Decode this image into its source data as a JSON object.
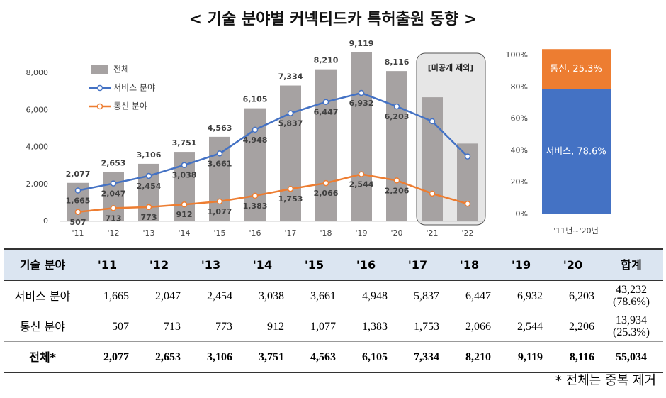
{
  "title": "< 기술 분야별 커넥티드카 특허출원 동향 >",
  "chart_data": [
    {
      "type": "bar-line",
      "categories": [
        "'11",
        "'12",
        "'13",
        "'14",
        "'15",
        "'16",
        "'17",
        "'18",
        "'19",
        "'20",
        "'21",
        "'22"
      ],
      "series": [
        {
          "name": "전체",
          "type": "bar",
          "color": "#a6a2a2",
          "values": [
            2077,
            2653,
            3106,
            3751,
            4563,
            6105,
            7334,
            8210,
            9119,
            8116,
            6700,
            4200
          ],
          "value_labels": [
            "2,077",
            "2,653",
            "3,106",
            "3,751",
            "4,563",
            "6,105",
            "7,334",
            "8,210",
            "9,119",
            "8,116",
            null,
            null
          ]
        },
        {
          "name": "서비스 분야",
          "type": "line",
          "color": "#4472c4",
          "values": [
            1665,
            2047,
            2454,
            3038,
            3661,
            4948,
            5837,
            6447,
            6932,
            6203,
            5400,
            3500
          ],
          "value_labels": [
            "1,665",
            "2,047",
            "2,454",
            "3,038",
            "3,661",
            "4,948",
            "5,837",
            "6,447",
            "6,932",
            "6,203",
            null,
            null
          ]
        },
        {
          "name": "통신 분야",
          "type": "line",
          "color": "#ed7d31",
          "values": [
            507,
            713,
            773,
            912,
            1077,
            1383,
            1753,
            2066,
            2544,
            2206,
            1500,
            950
          ],
          "value_labels": [
            "507",
            "713",
            "773",
            "912",
            "1,077",
            "1,383",
            "1,753",
            "2,066",
            "2,544",
            "2,206",
            null,
            null
          ]
        }
      ],
      "ylim": [
        0,
        9500
      ],
      "yticks": [
        0,
        {
          "value": 2000,
          "label": "2,000"
        },
        {
          "value": 4000,
          "label": "4,000"
        },
        {
          "value": 6000,
          "label": "6,000"
        },
        {
          "value": 8000,
          "label": "8,000"
        }
      ],
      "annotation": "[미공개 제외]",
      "legend": "upper-left"
    },
    {
      "type": "stacked-bar",
      "categories": [
        "'11년~'20년"
      ],
      "series": [
        {
          "name": "서비스",
          "color": "#4472c4",
          "values": [
            78.6
          ],
          "value_labels": [
            "서비스, 78.6%"
          ]
        },
        {
          "name": "통신",
          "color": "#ed7d31",
          "values": [
            25.3
          ],
          "value_labels": [
            "통신, 25.3%"
          ]
        }
      ],
      "ylim": [
        0,
        104
      ],
      "yticks": [
        {
          "value": 0,
          "label": "0%"
        },
        {
          "value": 20,
          "label": "20%"
        },
        {
          "value": 40,
          "label": "40%"
        },
        {
          "value": 60,
          "label": "60%"
        },
        {
          "value": 80,
          "label": "80%"
        },
        {
          "value": 100,
          "label": "100%"
        }
      ]
    }
  ],
  "table": {
    "header": [
      "기술 분야",
      "'11",
      "'12",
      "'13",
      "'14",
      "'15",
      "'16",
      "'17",
      "'18",
      "'19",
      "'20",
      "합계"
    ],
    "rows": [
      [
        "서비스 분야",
        "1,665",
        "2,047",
        "2,454",
        "3,038",
        "3,661",
        "4,948",
        "5,837",
        "6,447",
        "6,932",
        "6,203",
        "43,232\n(78.6%)"
      ],
      [
        "통신 분야",
        "507",
        "713",
        "773",
        "912",
        "1,077",
        "1,383",
        "1,753",
        "2,066",
        "2,544",
        "2,206",
        "13,934\n(25.3%)"
      ],
      [
        "전체*",
        "2,077",
        "2,653",
        "3,106",
        "3,751",
        "4,563",
        "6,105",
        "7,334",
        "8,210",
        "9,119",
        "8,116",
        "55,034"
      ]
    ]
  },
  "footnote": "* 전체는 중복 제거"
}
